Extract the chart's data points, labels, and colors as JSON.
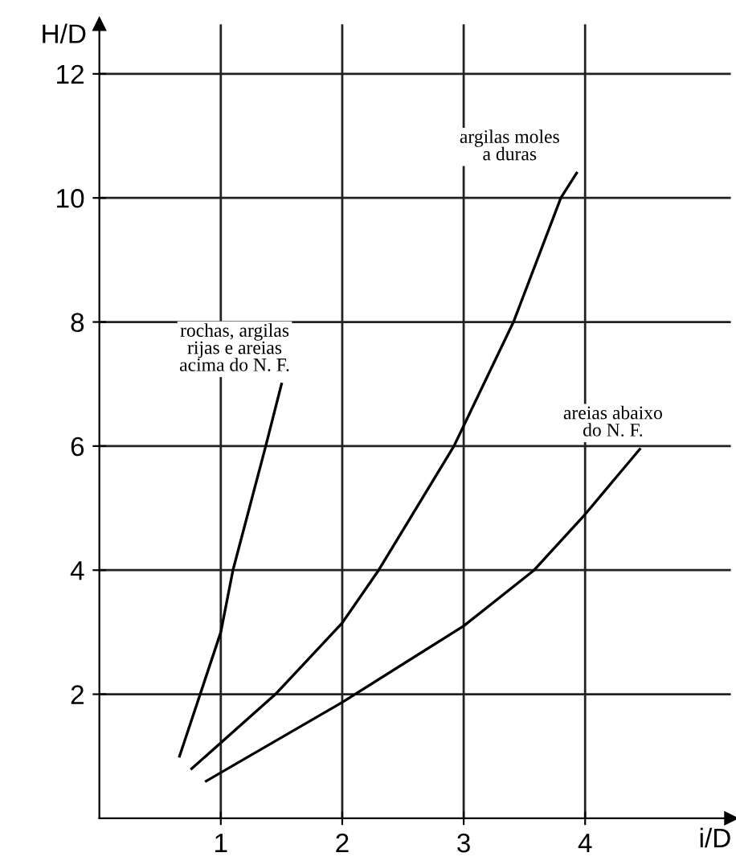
{
  "chart_data": {
    "type": "line",
    "xlabel": "i/D",
    "ylabel": "H/D",
    "xlim": [
      0,
      5.2
    ],
    "ylim": [
      0,
      12.8
    ],
    "xticks": [
      1,
      2,
      3,
      4
    ],
    "yticks": [
      2,
      4,
      6,
      8,
      10,
      12
    ],
    "grid": true,
    "legend": false,
    "marker": "none",
    "line_style": "solid",
    "series": [
      {
        "name": "rochas, argilas\nrijas e areias\nacima do N. F.",
        "color": "#000000",
        "x": [
          0.66,
          1.0,
          1.1,
          1.37,
          1.5
        ],
        "values": [
          1.0,
          3.0,
          4.0,
          6.0,
          7.0
        ]
      },
      {
        "name": "argilas moles\na duras",
        "color": "#000000",
        "x": [
          0.76,
          1.45,
          2.0,
          2.3,
          2.92,
          3.41,
          3.8,
          3.93
        ],
        "values": [
          0.8,
          2.0,
          3.15,
          4.0,
          6.0,
          8.0,
          10.0,
          10.4
        ]
      },
      {
        "name": "areias abaixo\ndo N. F.",
        "color": "#000000",
        "x": [
          0.88,
          2.0,
          3.0,
          3.58,
          4.0,
          4.45
        ],
        "values": [
          0.6,
          1.87,
          3.1,
          4.0,
          4.9,
          5.95
        ]
      }
    ]
  }
}
